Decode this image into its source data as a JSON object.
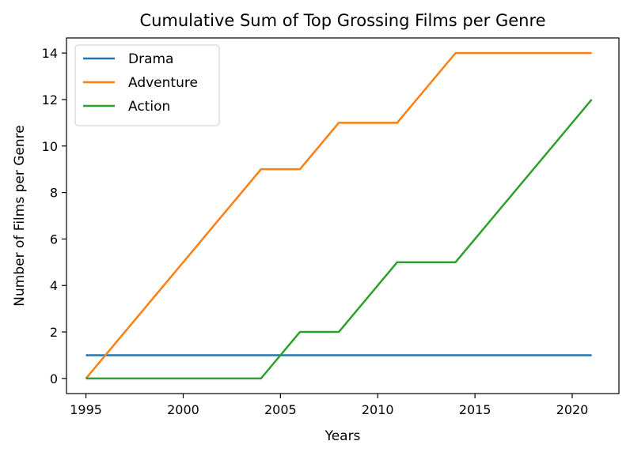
{
  "chart_data": {
    "type": "line",
    "title": "Cumulative Sum of Top Grossing Films per Genre",
    "xlabel": "Years",
    "ylabel": "Number of Films per Genre",
    "xlim": [
      1994,
      2022.4
    ],
    "ylim": [
      -0.65,
      14.65
    ],
    "xticks": [
      1995,
      2000,
      2005,
      2010,
      2015,
      2020
    ],
    "yticks": [
      0,
      2,
      4,
      6,
      8,
      10,
      12,
      14
    ],
    "grid": false,
    "legend": "top-left",
    "series": [
      {
        "name": "Drama",
        "color": "#1f77b4",
        "points": [
          [
            1995,
            1
          ],
          [
            2021,
            1
          ]
        ]
      },
      {
        "name": "Adventure",
        "color": "#ff7f0e",
        "points": [
          [
            1995,
            0
          ],
          [
            2004,
            9
          ],
          [
            2006,
            9
          ],
          [
            2008,
            11
          ],
          [
            2011,
            11
          ],
          [
            2014,
            14
          ],
          [
            2021,
            14
          ]
        ]
      },
      {
        "name": "Action",
        "color": "#2ca02c",
        "points": [
          [
            1995,
            0
          ],
          [
            2004,
            0
          ],
          [
            2006,
            2
          ],
          [
            2008,
            2
          ],
          [
            2011,
            5
          ],
          [
            2014,
            5
          ],
          [
            2021,
            12
          ]
        ]
      }
    ]
  }
}
